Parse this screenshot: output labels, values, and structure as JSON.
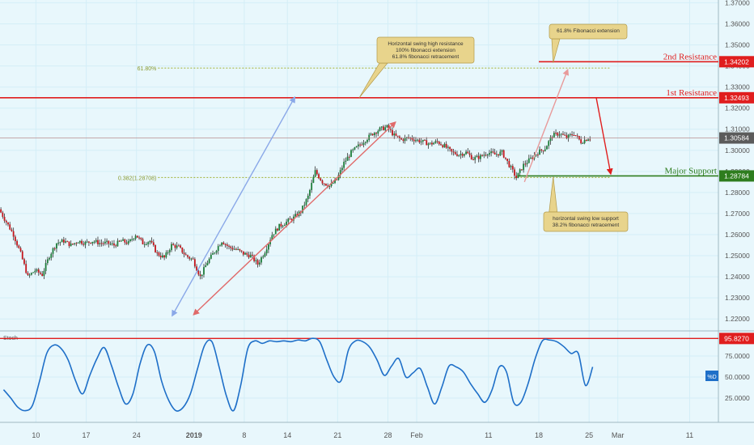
{
  "chart_data": {
    "type": "candlestick",
    "instrument": "",
    "price_axis": {
      "ylim": [
        1.2147,
        1.3713
      ],
      "ticks": [
        "1.37000",
        "1.36000",
        "1.35000",
        "1.34000",
        "1.33000",
        "1.32000",
        "1.31000",
        "1.30000",
        "1.29000",
        "1.28000",
        "1.27000",
        "1.26000",
        "1.25000",
        "1.24000",
        "1.23000",
        "1.22000"
      ],
      "tick_values": [
        1.37,
        1.36,
        1.35,
        1.34,
        1.33,
        1.32,
        1.31,
        1.3,
        1.29,
        1.28,
        1.27,
        1.26,
        1.25,
        1.24,
        1.23,
        1.22
      ]
    },
    "time_axis": {
      "labels": [
        "10",
        "17",
        "24",
        "2019",
        "8",
        "14",
        "21",
        "28",
        "Feb",
        "11",
        "18",
        "25",
        "Mar",
        "11"
      ],
      "label_days": [
        -22,
        -15,
        -8,
        0,
        7,
        13,
        20,
        27,
        31,
        41,
        48,
        55,
        59,
        69
      ],
      "range_days": [
        -27,
        73
      ]
    },
    "levels": [
      {
        "name": "2nd Resistance",
        "value": 1.34202,
        "value_label": "1.34202",
        "color": "#e01e1e",
        "day_range": [
          48,
          58
        ]
      },
      {
        "name": "1st Resistance",
        "value": 1.32493,
        "value_label": "1.32493",
        "color": "#e01e1e",
        "day_range": [
          -27,
          58
        ]
      },
      {
        "name": "Major Support",
        "value": 1.28784,
        "value_label": "1.28784",
        "color": "#2e7d1e",
        "day_range": [
          45,
          58
        ]
      }
    ],
    "current_price": {
      "value": 1.30584,
      "value_label": "1.30584",
      "color": "#555555"
    },
    "fib_lines": [
      {
        "label": "61.80%",
        "value": 1.339,
        "day_range": [
          -5,
          58
        ]
      },
      {
        "label": "0.382(1.28708)",
        "value": 1.28708,
        "day_range": [
          -5,
          58
        ]
      }
    ],
    "callouts": [
      {
        "lines": [
          "Horizontal swing high resistance",
          "100% fibonacci extension",
          "61.8% fibonacci retracement"
        ],
        "anchor_day": 23,
        "anchor_price": 1.3249
      },
      {
        "lines": [
          "61.8% Fibonacci extension"
        ],
        "anchor_day": 50,
        "anchor_price": 1.3415
      },
      {
        "lines": [
          "horizontal swing low support",
          "38.2% fibonacci retracement"
        ],
        "anchor_day": 50,
        "anchor_price": 1.2875
      }
    ],
    "arrows": [
      {
        "from": [
          -3,
          1.2217
        ],
        "to": [
          14,
          1.325
        ],
        "color": "#8aa8e8"
      },
      {
        "from": [
          0,
          1.2222
        ],
        "to": [
          28,
          1.3132
        ],
        "color": "#e06a6a"
      },
      {
        "from": [
          46,
          1.285
        ],
        "to": [
          52,
          1.338
        ],
        "color": "#e89a9a"
      },
      {
        "from": [
          56,
          1.3249
        ],
        "to": [
          58,
          1.289
        ],
        "color": "#e01e1e"
      }
    ],
    "price_anchors": [
      [
        -27,
        1.272
      ],
      [
        -26,
        1.266
      ],
      [
        -25,
        1.26
      ],
      [
        -24,
        1.251
      ],
      [
        -23,
        1.24
      ],
      [
        -22,
        1.243
      ],
      [
        -21,
        1.241
      ],
      [
        -20,
        1.25
      ],
      [
        -19,
        1.256
      ],
      [
        -18,
        1.257
      ],
      [
        -17,
        1.255
      ],
      [
        -16,
        1.257
      ],
      [
        -15,
        1.256
      ],
      [
        -14,
        1.257
      ],
      [
        -13,
        1.256
      ],
      [
        -12,
        1.256
      ],
      [
        -11,
        1.255
      ],
      [
        -10,
        1.257
      ],
      [
        -9,
        1.256
      ],
      [
        -8,
        1.26
      ],
      [
        -7,
        1.256
      ],
      [
        -6,
        1.257
      ],
      [
        -5,
        1.251
      ],
      [
        -4,
        1.249
      ],
      [
        -3,
        1.255
      ],
      [
        -2,
        1.254
      ],
      [
        -1,
        1.25
      ],
      [
        0,
        1.248
      ],
      [
        1,
        1.24
      ],
      [
        2,
        1.247
      ],
      [
        3,
        1.252
      ],
      [
        4,
        1.257
      ],
      [
        5,
        1.254
      ],
      [
        6,
        1.253
      ],
      [
        7,
        1.251
      ],
      [
        8,
        1.25
      ],
      [
        9,
        1.246
      ],
      [
        10,
        1.252
      ],
      [
        11,
        1.26
      ],
      [
        12,
        1.264
      ],
      [
        13,
        1.266
      ],
      [
        14,
        1.268
      ],
      [
        15,
        1.271
      ],
      [
        16,
        1.278
      ],
      [
        17,
        1.29
      ],
      [
        18,
        1.285
      ],
      [
        19,
        1.283
      ],
      [
        20,
        1.286
      ],
      [
        21,
        1.294
      ],
      [
        22,
        1.299
      ],
      [
        23,
        1.302
      ],
      [
        24,
        1.305
      ],
      [
        25,
        1.308
      ],
      [
        26,
        1.31
      ],
      [
        27,
        1.311
      ],
      [
        28,
        1.307
      ],
      [
        29,
        1.305
      ],
      [
        30,
        1.306
      ],
      [
        31,
        1.305
      ],
      [
        32,
        1.304
      ],
      [
        33,
        1.303
      ],
      [
        34,
        1.304
      ],
      [
        35,
        1.302
      ],
      [
        36,
        1.299
      ],
      [
        37,
        1.298
      ],
      [
        38,
        1.299
      ],
      [
        39,
        1.296
      ],
      [
        40,
        1.297
      ],
      [
        41,
        1.299
      ],
      [
        42,
        1.298
      ],
      [
        43,
        1.299
      ],
      [
        44,
        1.293
      ],
      [
        45,
        1.287
      ],
      [
        46,
        1.293
      ],
      [
        47,
        1.296
      ],
      [
        48,
        1.299
      ],
      [
        49,
        1.301
      ],
      [
        50,
        1.307
      ],
      [
        51,
        1.308
      ],
      [
        52,
        1.306
      ],
      [
        53,
        1.308
      ],
      [
        54,
        1.304
      ],
      [
        55,
        1.3058
      ]
    ],
    "indicator": {
      "name": "Stoch",
      "series_label": "%D",
      "ylim": [
        0,
        100
      ],
      "ticks": [
        "75.0000",
        "50.0000",
        "25.0000"
      ],
      "tick_values": [
        75,
        50,
        25
      ],
      "level": {
        "value": 95.827,
        "value_label": "95.8270",
        "color": "#e01e1e"
      },
      "color": "#1e6fc8",
      "values": [
        [
          -27,
          35
        ],
        [
          -26,
          25
        ],
        [
          -25,
          14
        ],
        [
          -24,
          10
        ],
        [
          -23,
          16
        ],
        [
          -22,
          45
        ],
        [
          -21,
          78
        ],
        [
          -20,
          88
        ],
        [
          -19,
          84
        ],
        [
          -18,
          70
        ],
        [
          -17,
          46
        ],
        [
          -16,
          30
        ],
        [
          -15,
          52
        ],
        [
          -14,
          72
        ],
        [
          -13,
          85
        ],
        [
          -12,
          64
        ],
        [
          -11,
          38
        ],
        [
          -10,
          18
        ],
        [
          -9,
          30
        ],
        [
          -8,
          66
        ],
        [
          -7,
          88
        ],
        [
          -6,
          80
        ],
        [
          -5,
          45
        ],
        [
          -4,
          22
        ],
        [
          -3,
          10
        ],
        [
          -2,
          14
        ],
        [
          -1,
          30
        ],
        [
          0,
          60
        ],
        [
          1,
          88
        ],
        [
          2,
          92
        ],
        [
          3,
          62
        ],
        [
          4,
          28
        ],
        [
          5,
          10
        ],
        [
          6,
          40
        ],
        [
          7,
          84
        ],
        [
          8,
          93
        ],
        [
          9,
          90
        ],
        [
          10,
          93
        ],
        [
          11,
          92
        ],
        [
          12,
          93
        ],
        [
          13,
          92
        ],
        [
          14,
          94
        ],
        [
          15,
          93
        ],
        [
          16,
          96
        ],
        [
          17,
          92
        ],
        [
          18,
          70
        ],
        [
          19,
          50
        ],
        [
          20,
          46
        ],
        [
          21,
          82
        ],
        [
          22,
          93
        ],
        [
          23,
          92
        ],
        [
          24,
          85
        ],
        [
          25,
          70
        ],
        [
          26,
          52
        ],
        [
          27,
          63
        ],
        [
          28,
          72
        ],
        [
          29,
          50
        ],
        [
          30,
          55
        ],
        [
          31,
          60
        ],
        [
          32,
          38
        ],
        [
          33,
          18
        ],
        [
          34,
          38
        ],
        [
          35,
          63
        ],
        [
          36,
          62
        ],
        [
          37,
          56
        ],
        [
          38,
          42
        ],
        [
          39,
          30
        ],
        [
          40,
          20
        ],
        [
          41,
          35
        ],
        [
          42,
          62
        ],
        [
          43,
          56
        ],
        [
          44,
          20
        ],
        [
          45,
          20
        ],
        [
          46,
          42
        ],
        [
          47,
          72
        ],
        [
          48,
          93
        ],
        [
          49,
          94
        ],
        [
          50,
          92
        ],
        [
          51,
          86
        ],
        [
          52,
          78
        ],
        [
          53,
          78
        ],
        [
          54,
          40
        ],
        [
          55,
          62
        ]
      ]
    }
  }
}
